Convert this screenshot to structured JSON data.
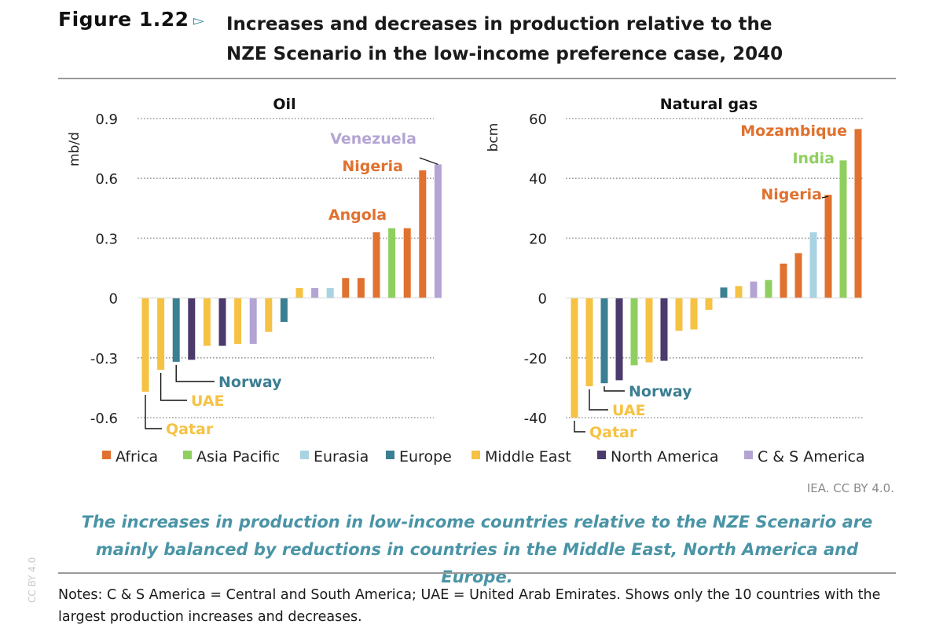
{
  "header": {
    "figure_label": "Figure 1.22",
    "title_line1": "Increases and decreases in production relative to the",
    "title_line2": "NZE Scenario in the low-income preference case, 2040"
  },
  "legend": [
    {
      "name": "Africa",
      "color": "#e0712f"
    },
    {
      "name": "Asia Pacific",
      "color": "#8fcf5f"
    },
    {
      "name": "Eurasia",
      "color": "#a8d3e3"
    },
    {
      "name": "Europe",
      "color": "#3b7f93"
    },
    {
      "name": "Middle East",
      "color": "#f6c244"
    },
    {
      "name": "North America",
      "color": "#4b3a6b"
    },
    {
      "name": "C & S America",
      "color": "#b4a4d4"
    }
  ],
  "chart_data": [
    {
      "type": "bar",
      "title": "Oil",
      "ylabel": "mb/d",
      "ylim": [
        -0.6,
        0.9
      ],
      "ticks": [
        "0.9",
        "0.6",
        "0.3",
        "0",
        "-0.3",
        "-0.6"
      ],
      "tick_values": [
        0.9,
        0.6,
        0.3,
        0,
        -0.3,
        -0.6
      ],
      "grid": true,
      "values": [
        -0.47,
        -0.36,
        -0.32,
        -0.31,
        -0.24,
        -0.24,
        -0.23,
        -0.23,
        -0.17,
        -0.12,
        0.05,
        0.05,
        0.05,
        0.1,
        0.1,
        0.33,
        0.35,
        0.35,
        0.64,
        0.67
      ],
      "regions": [
        "Middle East",
        "Middle East",
        "Europe",
        "North America",
        "Middle East",
        "North America",
        "Middle East",
        "C & S America",
        "Middle East",
        "Europe",
        "Middle East",
        "C & S America",
        "Eurasia",
        "Africa",
        "Africa",
        "Africa",
        "Asia Pacific",
        "Africa",
        "Africa",
        "C & S America"
      ],
      "annotations": [
        {
          "text": "Venezuela",
          "bar": 19,
          "color": "#b4a4d4"
        },
        {
          "text": "Nigeria",
          "bar": 18,
          "color": "#e0712f"
        },
        {
          "text": "Angola",
          "bar": 15,
          "color": "#e0712f"
        },
        {
          "text": "Norway",
          "bar": 2,
          "color": "#3b7f93"
        },
        {
          "text": "UAE",
          "bar": 1,
          "color": "#f6c244"
        },
        {
          "text": "Qatar",
          "bar": 0,
          "color": "#f6c244"
        }
      ]
    },
    {
      "type": "bar",
      "title": "Natural gas",
      "ylabel": "bcm",
      "ylim": [
        -40,
        60
      ],
      "ticks": [
        "60",
        "40",
        "20",
        "0",
        "-20",
        "-40"
      ],
      "tick_values": [
        60,
        40,
        20,
        0,
        -20,
        -40
      ],
      "grid": true,
      "values": [
        -40,
        -29.5,
        -28.5,
        -27.5,
        -22.5,
        -21.5,
        -21,
        -11,
        -10.5,
        -4,
        3.5,
        4,
        5.5,
        6,
        11.5,
        15,
        22,
        34.5,
        46,
        56.5
      ],
      "regions": [
        "Middle East",
        "Middle East",
        "Europe",
        "North America",
        "Asia Pacific",
        "Middle East",
        "North America",
        "Middle East",
        "Middle East",
        "Middle East",
        "Europe",
        "Middle East",
        "C & S America",
        "Asia Pacific",
        "Africa",
        "Africa",
        "Eurasia",
        "Africa",
        "Asia Pacific",
        "Africa"
      ],
      "annotations": [
        {
          "text": "Mozambique",
          "bar": 19,
          "color": "#e0712f"
        },
        {
          "text": "India",
          "bar": 18,
          "color": "#8fcf5f"
        },
        {
          "text": "Nigeria",
          "bar": 17,
          "color": "#e0712f"
        },
        {
          "text": "Norway",
          "bar": 2,
          "color": "#3b7f93"
        },
        {
          "text": "UAE",
          "bar": 1,
          "color": "#f6c244"
        },
        {
          "text": "Qatar",
          "bar": 0,
          "color": "#f6c244"
        }
      ]
    }
  ],
  "credit": "IEA. CC BY 4.0.",
  "caption": "The increases in production in low-income countries relative to the NZE Scenario are mainly balanced by reductions in countries in the Middle East, North America and Europe.",
  "notes": "Notes: C & S America = Central and South America; UAE = United Arab Emirates. Shows only the 10 countries with the largest production increases and decreases.",
  "watermark": "CC BY 4.0"
}
